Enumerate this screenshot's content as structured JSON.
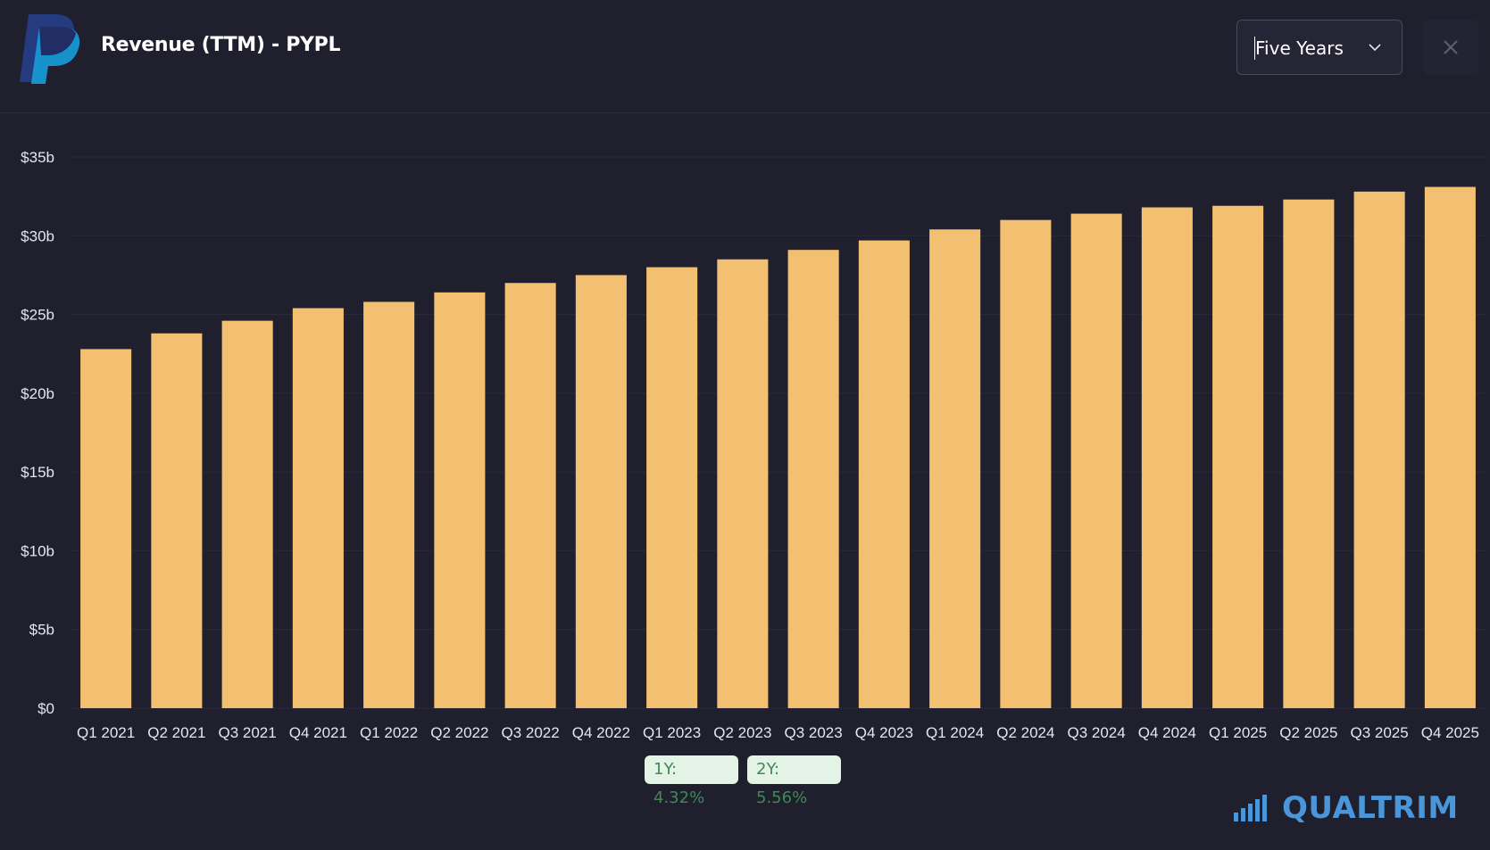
{
  "header": {
    "title": "Revenue (TTM) - PYPL",
    "logo": "paypal-logo",
    "period_select": {
      "selected": "Five Years"
    },
    "close_icon": "close-icon"
  },
  "colors": {
    "background": "#1f1f2e",
    "bar": "#f2c070",
    "grid": "#2a2a3a",
    "badge_bg": "#e3f3e6",
    "badge_text": "#3f8a55",
    "brand": "#4a96d9"
  },
  "chart_data": {
    "type": "bar",
    "title": "Revenue (TTM) - PYPL",
    "categories": [
      "Q1 2021",
      "Q2 2021",
      "Q3 2021",
      "Q4 2021",
      "Q1 2022",
      "Q2 2022",
      "Q3 2022",
      "Q4 2022",
      "Q1 2023",
      "Q2 2023",
      "Q3 2023",
      "Q4 2023",
      "Q1 2024",
      "Q2 2024",
      "Q3 2024",
      "Q4 2024",
      "Q1 2025",
      "Q2 2025",
      "Q3 2025",
      "Q4 2025"
    ],
    "values": [
      22.8,
      23.8,
      24.6,
      25.4,
      25.8,
      26.4,
      27.0,
      27.5,
      28.0,
      28.5,
      29.1,
      29.7,
      30.4,
      31.0,
      31.4,
      31.8,
      31.9,
      32.3,
      32.8,
      33.1
    ],
    "unit": "billion USD",
    "ylim": [
      0,
      35
    ],
    "yticks": [
      0,
      5,
      10,
      15,
      20,
      25,
      30,
      35
    ],
    "ytick_labels": [
      "$0",
      "$5b",
      "$10b",
      "$15b",
      "$20b",
      "$25b",
      "$30b",
      "$35b"
    ],
    "grid": true,
    "legend": "none"
  },
  "growth": {
    "one_year": "1Y: 4.32%",
    "two_year": "2Y: 5.56%"
  },
  "brand": {
    "name": "QUALTRIM",
    "icon": "bar-chart-icon"
  }
}
